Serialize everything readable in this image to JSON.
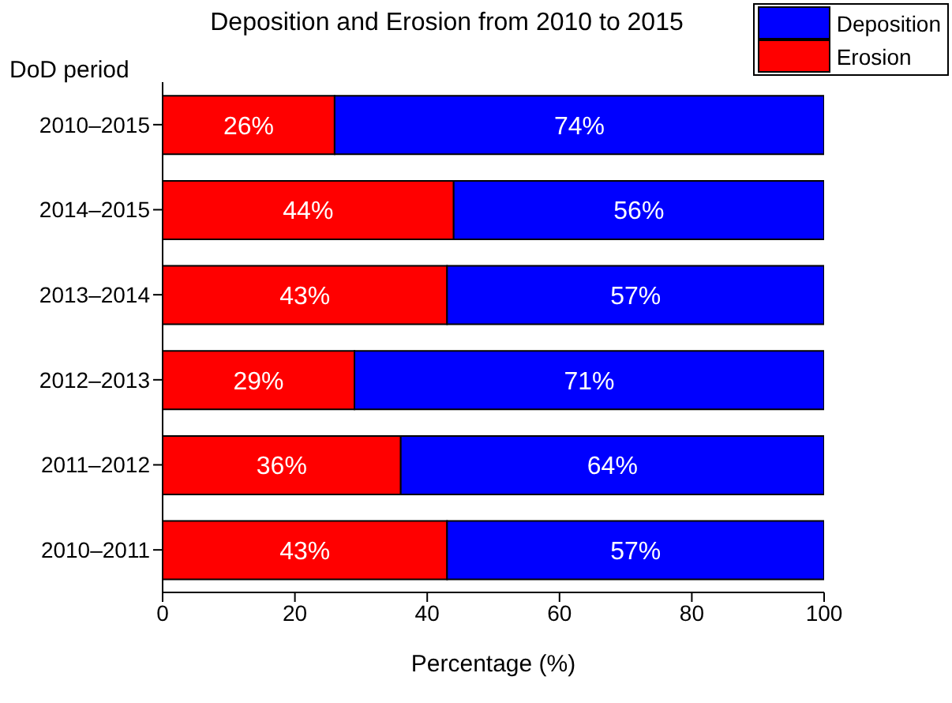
{
  "chart_data": {
    "type": "bar",
    "orientation": "horizontal",
    "stacked": true,
    "title": "Deposition and Erosion from 2010 to 2015",
    "xlabel": "Percentage (%)",
    "ylabel": "DoD period",
    "categories": [
      "2010–2015",
      "2014–2015",
      "2013–2014",
      "2012–2013",
      "2011–2012",
      "2010–2011"
    ],
    "series": [
      {
        "name": "Erosion",
        "color": "#ff0000",
        "values": [
          26,
          44,
          43,
          29,
          36,
          43
        ],
        "value_labels": [
          "26%",
          "44%",
          "43%",
          "29%",
          "36%",
          "43%"
        ]
      },
      {
        "name": "Deposition",
        "color": "#0000ff",
        "values": [
          74,
          56,
          57,
          71,
          64,
          57
        ],
        "value_labels": [
          "74%",
          "56%",
          "57%",
          "71%",
          "64%",
          "57%"
        ]
      }
    ],
    "xlim": [
      0,
      100
    ],
    "xticks": [
      0,
      20,
      40,
      60,
      80,
      100
    ],
    "grid": false,
    "legend": "top right"
  }
}
